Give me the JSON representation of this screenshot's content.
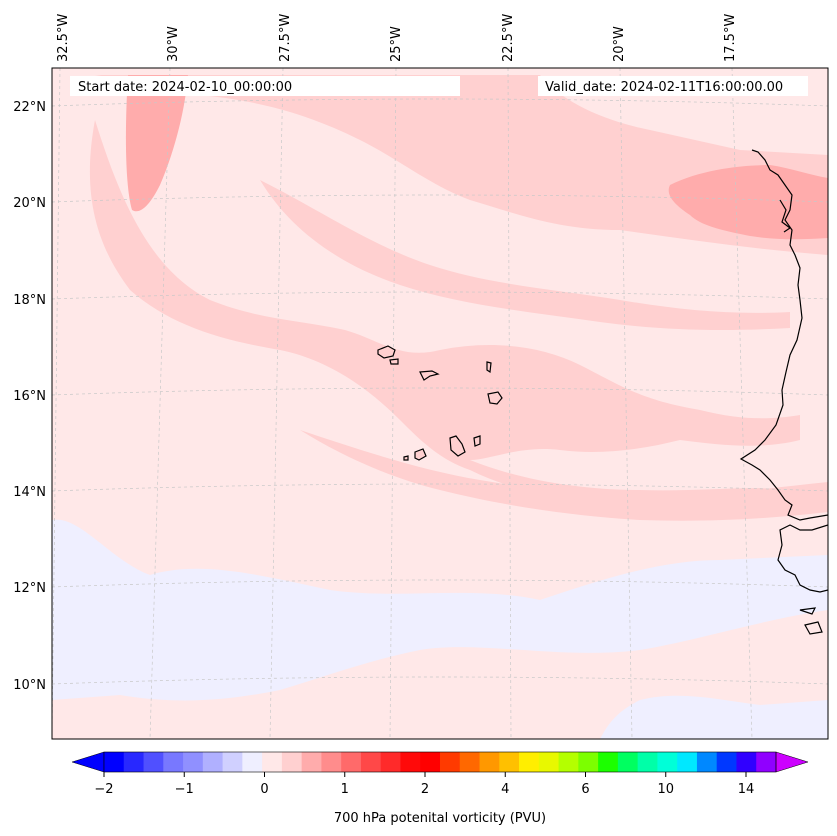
{
  "header": {
    "start_label": "Start date: 2024-02-10_00:00:00",
    "valid_label": "Valid_date: 2024-02-11T16:00:00.00"
  },
  "map": {
    "lon_labels": [
      "32.5°W",
      "30°W",
      "27.5°W",
      "25°W",
      "22.5°W",
      "20°W",
      "17.5°W"
    ],
    "lat_labels": [
      "22°N",
      "20°N",
      "18°N",
      "16°N",
      "14°N",
      "12°N",
      "10°N"
    ],
    "colors": {
      "background": "#ffe8e8",
      "light_pink": "#ffd0d0",
      "medium_pink": "#ffacac",
      "lavender": "#efefff",
      "coastline": "#000000"
    }
  },
  "colorbar": {
    "label": "700 hPa potenital vorticity (PVU)",
    "ticks": [
      "−2",
      "−1",
      "0",
      "1",
      "2",
      "4",
      "6",
      "10",
      "14"
    ],
    "colors": [
      "#0000ff",
      "#2828ff",
      "#5050ff",
      "#7878ff",
      "#9090ff",
      "#b0b0ff",
      "#d0d0ff",
      "#efefff",
      "#ffe8e8",
      "#ffd0d0",
      "#ffacac",
      "#ff8c8c",
      "#ff6a6a",
      "#ff4848",
      "#ff2a2a",
      "#ff0a0a",
      "#ff0000",
      "#ff3a00",
      "#ff6800",
      "#ff9800",
      "#ffc000",
      "#ffee00",
      "#e8f800",
      "#b4ff00",
      "#7cff00",
      "#1cff00",
      "#00ff60",
      "#00ffa8",
      "#00ffd8",
      "#00e8ff",
      "#0088ff",
      "#0038ff",
      "#3000ff",
      "#9000ff"
    ],
    "under_color": "#0000ff",
    "over_color": "#cc00ff"
  }
}
